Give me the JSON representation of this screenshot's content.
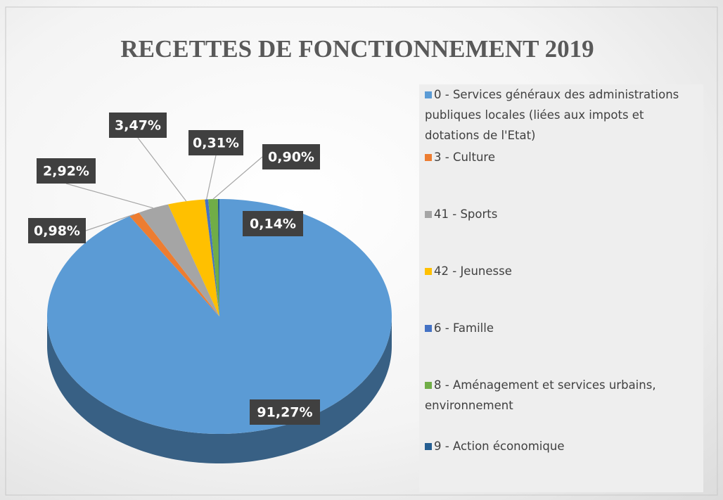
{
  "chart_data": {
    "type": "pie",
    "title": "RECETTES DE FONCTIONNEMENT 2019",
    "categories": [
      "0 - Services généraux des administrations publiques locales (liées aux impots et dotations de l'Etat)",
      "3 - Culture",
      "41 - Sports",
      "42 - Jeunesse",
      "6 - Famille",
      "8 - Aménagement et services urbains, environnement",
      "9 - Action économique"
    ],
    "values": [
      91.27,
      0.98,
      2.92,
      3.47,
      0.31,
      0.9,
      0.14
    ],
    "value_labels": [
      "91,27%",
      "0,98%",
      "2,92%",
      "3,47%",
      "0,31%",
      "0,90%",
      "0,14%"
    ],
    "colors": [
      "#5b9bd5",
      "#ed7d31",
      "#a5a5a5",
      "#ffc000",
      "#4472c4",
      "#70ad47",
      "#255e91"
    ],
    "legend": "right"
  }
}
